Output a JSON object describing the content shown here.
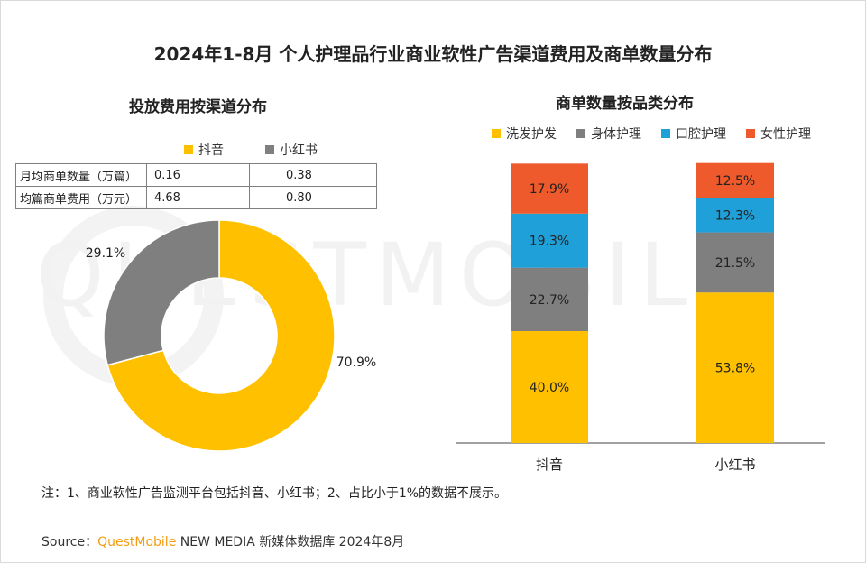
{
  "title": "2024年1-8月 个人护理品行业商业软性广告渠道费用及商单数量分布",
  "watermark": "QUESTMOBILE",
  "left_panel": {
    "subtitle": "投放费用按渠道分布",
    "legend": [
      {
        "name": "抖音",
        "color": "#FFC000"
      },
      {
        "name": "小红书",
        "color": "#7F7F7F"
      }
    ],
    "table": {
      "rows": [
        {
          "label": "月均商单数量（万篇）",
          "douyin": "0.16",
          "xiaohongshu": "0.38"
        },
        {
          "label": "均篇商单费用（万元）",
          "douyin": "4.68",
          "xiaohongshu": "0.80"
        }
      ]
    }
  },
  "right_panel": {
    "subtitle": "商单数量按品类分布",
    "legend": [
      {
        "name": "洗发护发",
        "color": "#FFC000"
      },
      {
        "name": "身体护理",
        "color": "#7F7F7F"
      },
      {
        "name": "口腔护理",
        "color": "#1FA0D8"
      },
      {
        "name": "女性护理",
        "color": "#EE5A2B"
      }
    ]
  },
  "chart_data": [
    {
      "type": "pie",
      "title": "投放费用按渠道分布",
      "donut": true,
      "slices": [
        {
          "name": "抖音",
          "value": 70.9,
          "label": "70.9%",
          "color": "#FFC000"
        },
        {
          "name": "小红书",
          "value": 29.1,
          "label": "29.1%",
          "color": "#7F7F7F"
        }
      ]
    },
    {
      "type": "bar",
      "stacked": true,
      "title": "商单数量按品类分布",
      "categories": [
        "抖音",
        "小红书"
      ],
      "ylim": [
        0,
        100
      ],
      "legend_position": "top",
      "series": [
        {
          "name": "洗发护发",
          "color": "#FFC000",
          "values": [
            40.0,
            53.8
          ],
          "labels": [
            "40.0%",
            "53.8%"
          ]
        },
        {
          "name": "身体护理",
          "color": "#7F7F7F",
          "values": [
            22.7,
            21.5
          ],
          "labels": [
            "22.7%",
            "21.5%"
          ]
        },
        {
          "name": "口腔护理",
          "color": "#1FA0D8",
          "values": [
            19.3,
            12.3
          ],
          "labels": [
            "19.3%",
            "12.3%"
          ]
        },
        {
          "name": "女性护理",
          "color": "#EE5A2B",
          "values": [
            17.9,
            12.5
          ],
          "labels": [
            "17.9%",
            "12.5%"
          ]
        }
      ]
    }
  ],
  "note": "注：1、商业软性广告监测平台包括抖音、小红书；2、占比小于1%的数据不展示。",
  "source": {
    "prefix": "Source：",
    "brand": "QuestMobile",
    "rest": " NEW MEDIA 新媒体数据库 2024年8月"
  }
}
